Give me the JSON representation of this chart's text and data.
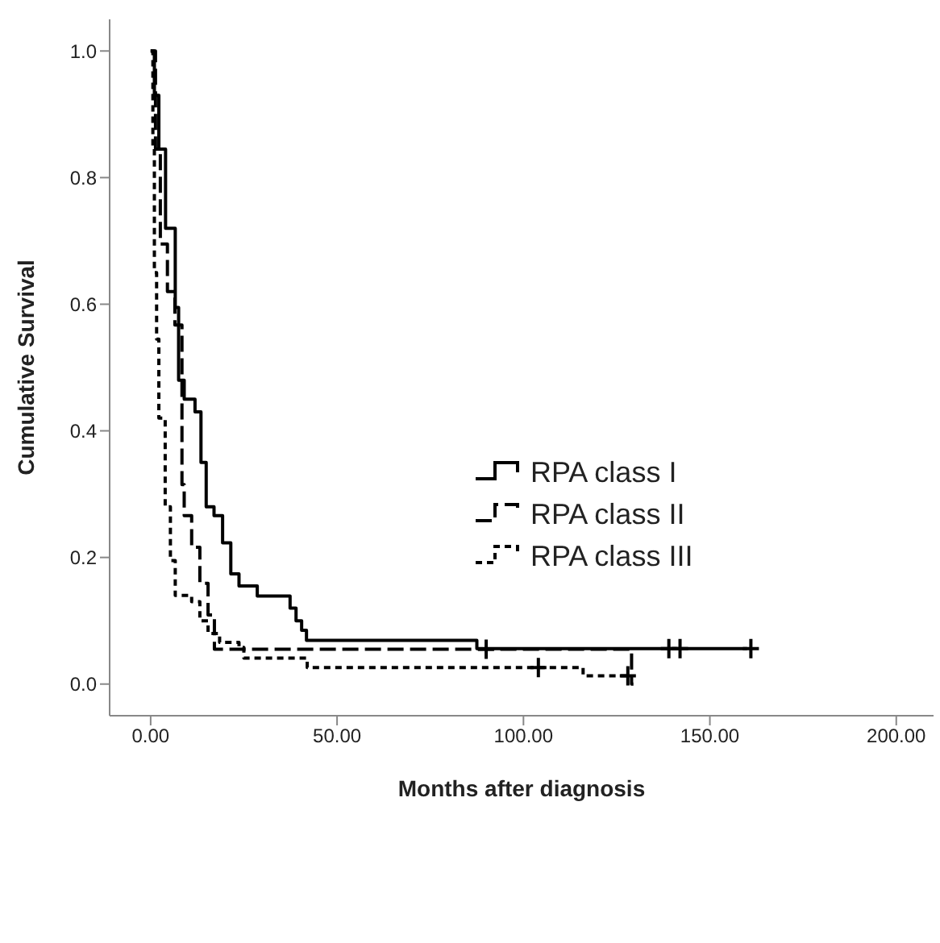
{
  "chart_data": {
    "type": "step",
    "xlabel": "Months after diagnosis",
    "ylabel": "Cumulative Survival",
    "legend": "center",
    "xlim": [
      -11,
      210
    ],
    "ylim": [
      -0.05,
      1.05
    ],
    "xticks": [
      {
        "value": 0,
        "label": "0.00"
      },
      {
        "value": 50,
        "label": "50.00"
      },
      {
        "value": 100,
        "label": "100.00"
      },
      {
        "value": 150,
        "label": "150.00"
      },
      {
        "value": 200,
        "label": "200.00"
      }
    ],
    "yticks": [
      {
        "value": 0,
        "label": "0.0"
      },
      {
        "value": 0.2,
        "label": "0.2"
      },
      {
        "value": 0.4,
        "label": "0.4"
      },
      {
        "value": 0.6,
        "label": "0.6"
      },
      {
        "value": 0.8,
        "label": "0.8"
      },
      {
        "value": 1,
        "label": "1.0"
      }
    ],
    "series": [
      {
        "name": "RPA class I",
        "color": "#000000",
        "line_style": "solid",
        "x": [
          0,
          1,
          2.2,
          4,
          6.6,
          7.5,
          9,
          11.9,
          13.5,
          14.9,
          17,
          19.3,
          21.5,
          23.7,
          28.6,
          37.4,
          39,
          40.5,
          41.8,
          87.5,
          160
        ],
        "values": [
          1,
          0.93,
          0.845,
          0.72,
          0.595,
          0.48,
          0.45,
          0.43,
          0.35,
          0.28,
          0.266,
          0.223,
          0.174,
          0.155,
          0.139,
          0.12,
          0.1,
          0.085,
          0.069,
          0.056,
          0.056
        ]
      },
      {
        "name": "RPA class II",
        "color": "#000000",
        "line_style": "dashed",
        "x": [
          0,
          1.3,
          2.6,
          4.5,
          6.5,
          8.4,
          9,
          11,
          13.2,
          15.4,
          17.1,
          129,
          129.5
        ],
        "values": [
          1,
          0.845,
          0.695,
          0.62,
          0.567,
          0.315,
          0.266,
          0.216,
          0.159,
          0.109,
          0.055,
          0,
          0
        ]
      },
      {
        "name": "RPA class III",
        "color": "#000000",
        "line_style": "dotted",
        "x": [
          0,
          0.6,
          1,
          1.6,
          2.2,
          3.9,
          5.3,
          6.6,
          11,
          13.2,
          15.4,
          18.5,
          23.7,
          25,
          38,
          42,
          116,
          129
        ],
        "values": [
          1,
          0.845,
          0.65,
          0.545,
          0.42,
          0.28,
          0.195,
          0.14,
          0.13,
          0.1,
          0.08,
          0.066,
          0.058,
          0.041,
          0.041,
          0.026,
          0.013,
          0.013
        ]
      },
      {
        "type": "scatter",
        "color": "#000000",
        "marker": "cross",
        "x": [
          139,
          142,
          161
        ],
        "values": [
          0.056,
          0.056,
          0.056
        ]
      },
      {
        "type": "scatter",
        "color": "#000000",
        "marker": "cross",
        "x": [
          90
        ],
        "values": [
          0.055
        ]
      },
      {
        "type": "scatter",
        "color": "#000000",
        "marker": "cross",
        "x": [
          104,
          128
        ],
        "values": [
          0.026,
          0.013
        ]
      }
    ]
  }
}
